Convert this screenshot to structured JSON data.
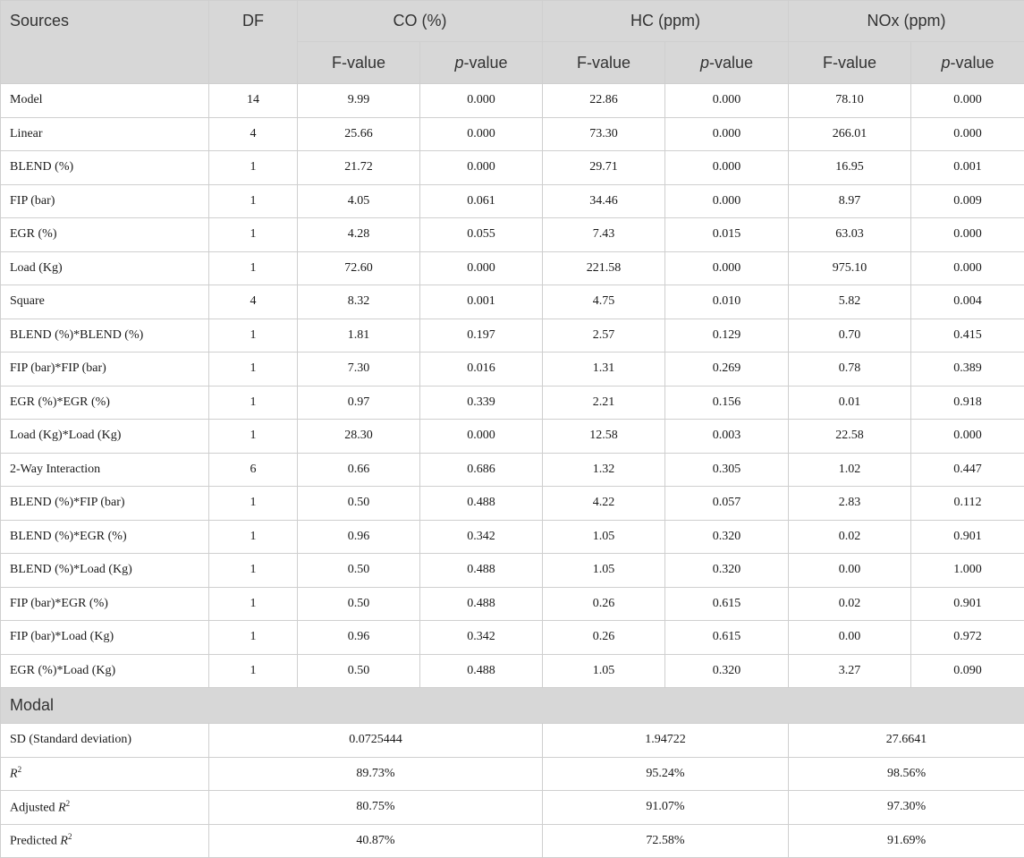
{
  "header": {
    "sources": "Sources",
    "df": "DF",
    "groups": [
      "CO (%)",
      "HC (ppm)",
      "NOx (ppm)"
    ],
    "fvalue": "F-value",
    "pvalue_p": "p",
    "pvalue_rest": "-value"
  },
  "rows": [
    {
      "source": "Model",
      "df": "14",
      "co_f": "9.99",
      "co_p": "0.000",
      "hc_f": "22.86",
      "hc_p": "0.000",
      "nox_f": "78.10",
      "nox_p": "0.000"
    },
    {
      "source": "Linear",
      "df": "4",
      "co_f": "25.66",
      "co_p": "0.000",
      "hc_f": "73.30",
      "hc_p": "0.000",
      "nox_f": "266.01",
      "nox_p": "0.000"
    },
    {
      "source": "BLEND (%)",
      "df": "1",
      "co_f": "21.72",
      "co_p": "0.000",
      "hc_f": "29.71",
      "hc_p": "0.000",
      "nox_f": "16.95",
      "nox_p": "0.001"
    },
    {
      "source": "FIP (bar)",
      "df": "1",
      "co_f": "4.05",
      "co_p": "0.061",
      "hc_f": "34.46",
      "hc_p": "0.000",
      "nox_f": "8.97",
      "nox_p": "0.009"
    },
    {
      "source": "EGR (%)",
      "df": "1",
      "co_f": "4.28",
      "co_p": "0.055",
      "hc_f": "7.43",
      "hc_p": "0.015",
      "nox_f": "63.03",
      "nox_p": "0.000"
    },
    {
      "source": "Load (Kg)",
      "df": "1",
      "co_f": "72.60",
      "co_p": "0.000",
      "hc_f": "221.58",
      "hc_p": "0.000",
      "nox_f": "975.10",
      "nox_p": "0.000"
    },
    {
      "source": "Square",
      "df": "4",
      "co_f": "8.32",
      "co_p": "0.001",
      "hc_f": "4.75",
      "hc_p": "0.010",
      "nox_f": "5.82",
      "nox_p": "0.004"
    },
    {
      "source": "BLEND (%)*BLEND (%)",
      "df": "1",
      "co_f": "1.81",
      "co_p": "0.197",
      "hc_f": "2.57",
      "hc_p": "0.129",
      "nox_f": "0.70",
      "nox_p": "0.415"
    },
    {
      "source": "FIP (bar)*FIP (bar)",
      "df": "1",
      "co_f": "7.30",
      "co_p": "0.016",
      "hc_f": "1.31",
      "hc_p": "0.269",
      "nox_f": "0.78",
      "nox_p": "0.389"
    },
    {
      "source": "EGR (%)*EGR (%)",
      "df": "1",
      "co_f": "0.97",
      "co_p": "0.339",
      "hc_f": "2.21",
      "hc_p": "0.156",
      "nox_f": "0.01",
      "nox_p": "0.918"
    },
    {
      "source": "Load (Kg)*Load (Kg)",
      "df": "1",
      "co_f": "28.30",
      "co_p": "0.000",
      "hc_f": "12.58",
      "hc_p": "0.003",
      "nox_f": "22.58",
      "nox_p": "0.000"
    },
    {
      "source": "2-Way Interaction",
      "df": "6",
      "co_f": "0.66",
      "co_p": "0.686",
      "hc_f": "1.32",
      "hc_p": "0.305",
      "nox_f": "1.02",
      "nox_p": "0.447"
    },
    {
      "source": "BLEND (%)*FIP (bar)",
      "df": "1",
      "co_f": "0.50",
      "co_p": "0.488",
      "hc_f": "4.22",
      "hc_p": "0.057",
      "nox_f": "2.83",
      "nox_p": "0.112"
    },
    {
      "source": "BLEND (%)*EGR (%)",
      "df": "1",
      "co_f": "0.96",
      "co_p": "0.342",
      "hc_f": "1.05",
      "hc_p": "0.320",
      "nox_f": "0.02",
      "nox_p": "0.901"
    },
    {
      "source": "BLEND (%)*Load (Kg)",
      "df": "1",
      "co_f": "0.50",
      "co_p": "0.488",
      "hc_f": "1.05",
      "hc_p": "0.320",
      "nox_f": "0.00",
      "nox_p": "1.000"
    },
    {
      "source": "FIP (bar)*EGR (%)",
      "df": "1",
      "co_f": "0.50",
      "co_p": "0.488",
      "hc_f": "0.26",
      "hc_p": "0.615",
      "nox_f": "0.02",
      "nox_p": "0.901"
    },
    {
      "source": "FIP (bar)*Load (Kg)",
      "df": "1",
      "co_f": "0.96",
      "co_p": "0.342",
      "hc_f": "0.26",
      "hc_p": "0.615",
      "nox_f": "0.00",
      "nox_p": "0.972"
    },
    {
      "source": "EGR (%)*Load (Kg)",
      "df": "1",
      "co_f": "0.50",
      "co_p": "0.488",
      "hc_f": "1.05",
      "hc_p": "0.320",
      "nox_f": "3.27",
      "nox_p": "0.090"
    }
  ],
  "modal": {
    "title": "Modal",
    "sd": {
      "label": "SD (Standard deviation)",
      "co": "0.0725444",
      "hc": "1.94722",
      "nox": "27.6641"
    },
    "r2": {
      "label_italic": "R",
      "label_sup": "2",
      "co": "89.73%",
      "hc": "95.24%",
      "nox": "98.56%"
    },
    "adj": {
      "label_prefix": "Adjusted ",
      "label_italic": "R",
      "label_sup": "2",
      "co": "80.75%",
      "hc": "91.07%",
      "nox": "97.30%"
    },
    "pred": {
      "label_prefix": "Predicted ",
      "label_italic": "R",
      "label_sup": "2",
      "co": "40.87%",
      "hc": "72.58%",
      "nox": "91.69%"
    }
  }
}
